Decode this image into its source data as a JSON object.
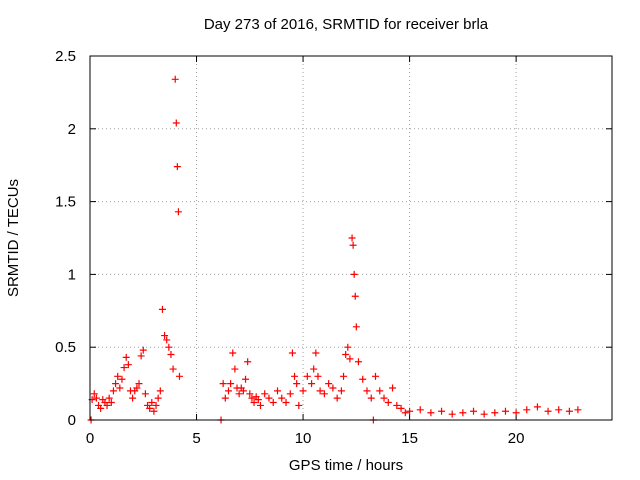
{
  "chart_data": {
    "type": "scatter",
    "title": "Day 273 of 2016, SRMTID for receiver brla",
    "xlabel": "GPS time / hours",
    "ylabel": "SRMTID / TECUs",
    "xlim": [
      0,
      24.5
    ],
    "ylim": [
      0,
      2.5
    ],
    "xticks": [
      0,
      5,
      10,
      15,
      20
    ],
    "yticks": [
      0,
      0.5,
      1,
      1.5,
      2,
      2.5
    ],
    "xtick_labels": [
      "0",
      "5",
      "10",
      "15",
      "20"
    ],
    "ytick_labels": [
      "0",
      "0.5",
      "1",
      "1.5",
      "2",
      "2.5"
    ],
    "grid": true,
    "legend": "none",
    "marker": "plus",
    "series_color": "#ff0000",
    "series": [
      {
        "x": [
          0.05,
          0.1,
          0.2,
          0.3,
          0.4,
          0.5,
          0.6,
          0.7,
          0.8,
          0.9,
          1.0,
          1.1,
          1.2,
          1.3,
          1.4,
          1.5,
          1.6,
          1.7,
          1.8,
          1.9,
          2.0,
          2.1,
          2.2,
          2.3,
          2.4,
          2.5,
          2.6,
          2.7,
          2.8,
          2.9,
          3.0,
          3.1,
          3.2,
          3.3,
          3.4,
          3.5,
          3.6,
          3.7,
          3.8,
          3.9,
          4.0,
          4.05,
          4.1,
          4.15,
          4.2,
          6.15,
          6.25,
          6.35,
          6.5,
          6.6,
          6.7,
          6.8,
          6.9,
          7.0,
          7.1,
          7.2,
          7.3,
          7.4,
          7.5,
          7.6,
          7.7,
          7.8,
          7.9,
          8.0,
          8.2,
          8.4,
          8.6,
          8.8,
          9.0,
          9.2,
          9.4,
          9.5,
          9.6,
          9.7,
          9.8,
          10.0,
          10.2,
          10.4,
          10.5,
          10.6,
          10.7,
          10.8,
          11.0,
          11.2,
          11.4,
          11.6,
          11.8,
          11.9,
          12.0,
          12.1,
          12.2,
          12.3,
          12.35,
          12.4,
          12.45,
          12.5,
          12.6,
          12.8,
          13.0,
          13.2,
          13.3,
          13.4,
          13.6,
          13.8,
          14.0,
          14.2,
          14.4,
          14.6,
          14.8,
          15.0,
          15.5,
          16.0,
          16.5,
          17.0,
          17.5,
          18.0,
          18.5,
          19.0,
          19.5,
          20.0,
          20.5,
          21.0,
          21.5,
          22.0,
          22.5,
          22.9
        ],
        "y": [
          0.0,
          0.14,
          0.18,
          0.15,
          0.1,
          0.08,
          0.14,
          0.12,
          0.1,
          0.15,
          0.12,
          0.2,
          0.25,
          0.3,
          0.22,
          0.28,
          0.36,
          0.43,
          0.38,
          0.2,
          0.15,
          0.2,
          0.22,
          0.25,
          0.44,
          0.48,
          0.18,
          0.1,
          0.08,
          0.12,
          0.06,
          0.1,
          0.15,
          0.2,
          0.76,
          0.58,
          0.55,
          0.5,
          0.45,
          0.35,
          2.34,
          2.04,
          1.74,
          1.43,
          0.3,
          0.0,
          0.25,
          0.15,
          0.2,
          0.25,
          0.46,
          0.35,
          0.22,
          0.18,
          0.22,
          0.2,
          0.28,
          0.4,
          0.18,
          0.15,
          0.12,
          0.16,
          0.14,
          0.1,
          0.18,
          0.15,
          0.12,
          0.2,
          0.15,
          0.12,
          0.18,
          0.46,
          0.3,
          0.25,
          0.1,
          0.2,
          0.3,
          0.25,
          0.35,
          0.46,
          0.3,
          0.2,
          0.18,
          0.25,
          0.22,
          0.15,
          0.2,
          0.3,
          0.45,
          0.5,
          0.42,
          1.25,
          1.2,
          1.0,
          0.85,
          0.64,
          0.4,
          0.28,
          0.2,
          0.15,
          0.0,
          0.3,
          0.2,
          0.15,
          0.12,
          0.22,
          0.1,
          0.08,
          0.05,
          0.06,
          0.07,
          0.05,
          0.06,
          0.04,
          0.05,
          0.06,
          0.04,
          0.05,
          0.06,
          0.05,
          0.07,
          0.09,
          0.06,
          0.07,
          0.06,
          0.07
        ]
      }
    ]
  }
}
